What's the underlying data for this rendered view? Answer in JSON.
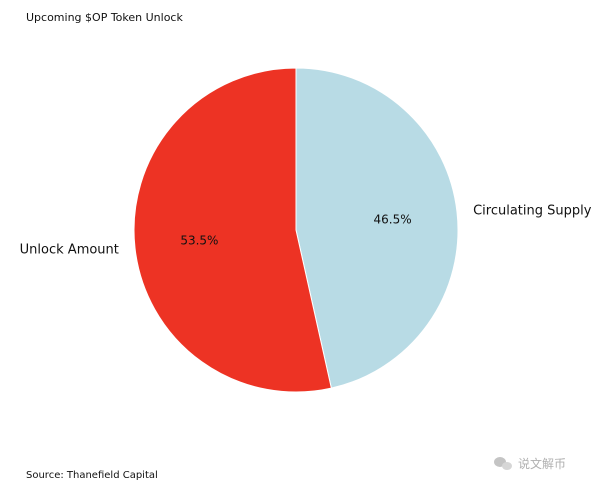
{
  "title": "Upcoming $OP Token Unlock",
  "source": "Source: Thanefield Capital",
  "watermark": "说文解币",
  "watermark_icon": "wechat-icon",
  "chart_data": {
    "type": "pie",
    "title": "Upcoming $OP Token Unlock",
    "start_angle": "12 o'clock, clockwise",
    "slices": [
      {
        "label": "Circulating Supply",
        "value": 46.5,
        "pct_label": "46.5%",
        "color": "#b8dbe5"
      },
      {
        "label": "Unlock Amount",
        "value": 53.5,
        "pct_label": "53.5%",
        "color": "#ed3324"
      }
    ]
  }
}
